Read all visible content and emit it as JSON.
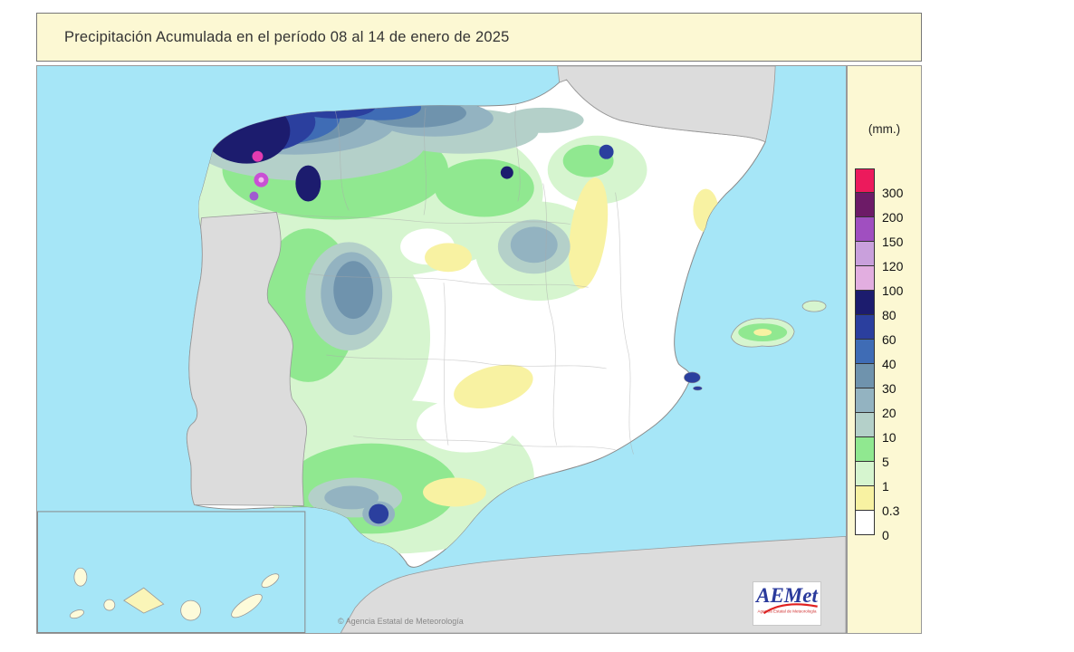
{
  "title": "Precipitación Acumulada en el período 08 al 14 de enero de 2025",
  "legend": {
    "unit": "(mm.)",
    "values": [
      "300",
      "200",
      "150",
      "120",
      "100",
      "80",
      "60",
      "40",
      "30",
      "20",
      "10",
      "5",
      "1",
      "0.3",
      "0"
    ],
    "colors": [
      "#ec1a5c",
      "#6d1b67",
      "#a04fc0",
      "#c9a0dc",
      "#e2aee0",
      "#1c1c6e",
      "#2b3f9e",
      "#3f6cb5",
      "#6f93ad",
      "#93b3c1",
      "#b4d0c9",
      "#90e890",
      "#d6f5cf",
      "#f8f2a2",
      "#ffffff"
    ]
  },
  "map": {
    "attribution": "© Agencia Estatal de Meteorología",
    "sea_color": "#a6e6f7",
    "land_other_color": "#dcdcdc"
  },
  "logo": {
    "text": "AEMet",
    "subtext": "Agencia Estatal de Meteorología"
  }
}
